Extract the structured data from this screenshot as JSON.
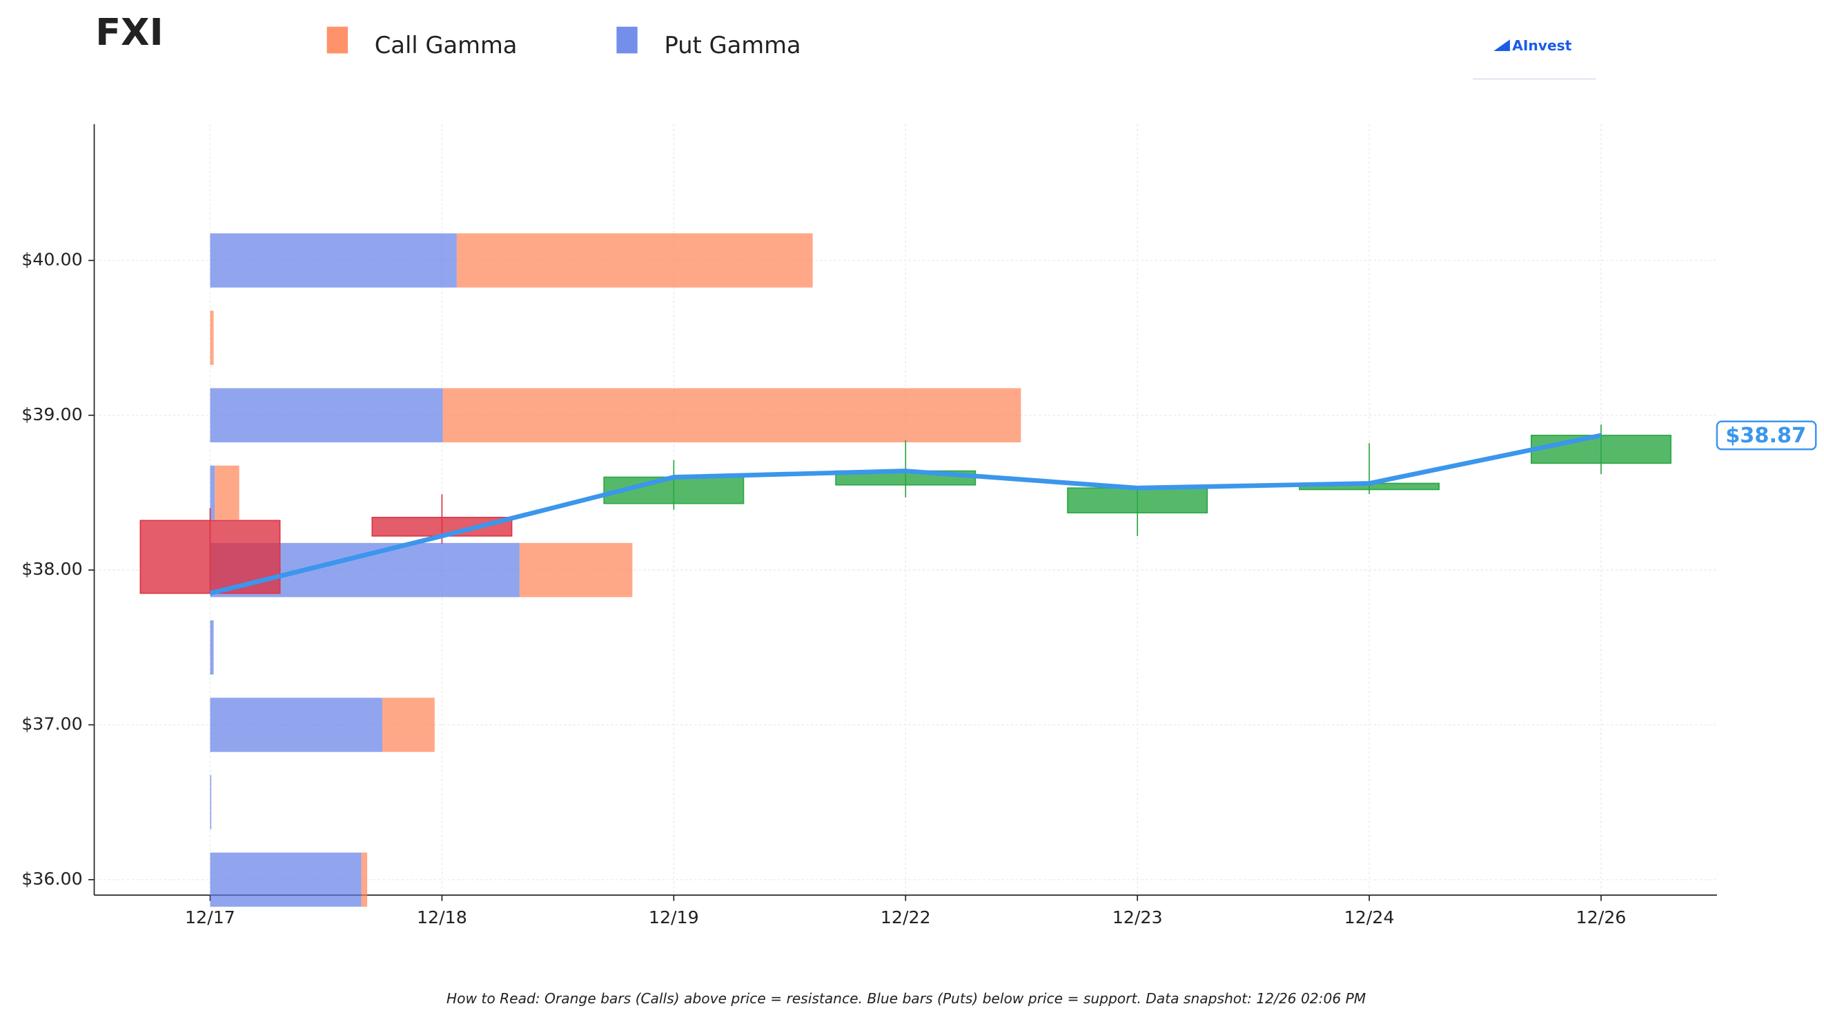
{
  "chart_data": {
    "type": "candlestick",
    "title": "FXI",
    "logo": "AInvest",
    "categories": [
      "12/17",
      "12/18",
      "12/19",
      "12/22",
      "12/23",
      "12/24",
      "12/26"
    ],
    "open": [
      38.32,
      38.34,
      38.43,
      38.55,
      38.37,
      38.52,
      38.69
    ],
    "high": [
      38.4,
      38.49,
      38.71,
      38.84,
      38.53,
      38.82,
      38.94
    ],
    "low": [
      37.85,
      38.17,
      38.39,
      38.47,
      38.22,
      38.49,
      38.62
    ],
    "close": [
      37.85,
      38.22,
      38.6,
      38.64,
      38.53,
      38.56,
      38.87
    ],
    "up_color": "#2ca745",
    "down_color": "#dc3545",
    "line_color": "#3b96ec",
    "ylim": [
      35.9,
      40.88
    ],
    "yticks": [
      {
        "value": 36,
        "label": "$36.00"
      },
      {
        "value": 37,
        "label": "$37.00"
      },
      {
        "value": 38,
        "label": "$38.00"
      },
      {
        "value": 39,
        "label": "$39.00"
      },
      {
        "value": 40,
        "label": "$40.00"
      }
    ],
    "grid": true,
    "price_label": {
      "value": 38.87,
      "label": "$38.87"
    },
    "gamma": {
      "levels": [
        36,
        36.5,
        37,
        37.5,
        38,
        38.5,
        39,
        39.5,
        40
      ],
      "series": [
        {
          "name": "Call Gamma",
          "color": "#ff7f50",
          "values": [
            5,
            0,
            45,
            0,
            97,
            21,
            497,
            3,
            306
          ]
        },
        {
          "name": "Put Gamma",
          "color": "#5b7be6",
          "values": [
            130,
            1,
            148,
            3,
            266,
            4,
            200,
            0,
            212
          ]
        }
      ]
    },
    "note": "How to Read: Orange bars (Calls) above price = resistance. Blue bars (Puts) below price = support. Data snapshot: 12/26 02:06 PM"
  }
}
